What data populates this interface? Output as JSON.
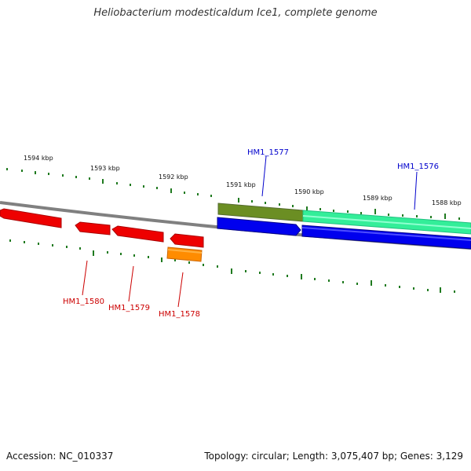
{
  "title": "Heliobacterium modesticaldum Ice1, complete genome",
  "footer": {
    "accession": "Accession: NC_010337",
    "summary": "Topology: circular; Length: 3,075,407 bp; Genes: 3,129"
  },
  "ticks": [
    {
      "label": "1594 kbp"
    },
    {
      "label": "1593 kbp"
    },
    {
      "label": "1592 kbp"
    },
    {
      "label": "1591 kbp"
    },
    {
      "label": "1590 kbp"
    },
    {
      "label": "1589 kbp"
    },
    {
      "label": "1588 kbp"
    }
  ],
  "genes": {
    "top": [
      {
        "label": "HM1_1577",
        "color": "#0000cc"
      },
      {
        "label": "HM1_1576",
        "color": "#0000cc"
      }
    ],
    "bottom": [
      {
        "label": "HM1_1580",
        "color": "#cc0000"
      },
      {
        "label": "HM1_1579",
        "color": "#cc0000"
      },
      {
        "label": "HM1_1578",
        "color": "#cc0000"
      }
    ]
  },
  "colors": {
    "backbone": "#808080",
    "tick": "#1f7a1f",
    "forward_gene": "#0000ff",
    "reverse_gene": "#ff0000",
    "orange_feature": "#ff8c00",
    "olive_feature": "#6b8e23",
    "teal_feature": "#33ee99"
  }
}
